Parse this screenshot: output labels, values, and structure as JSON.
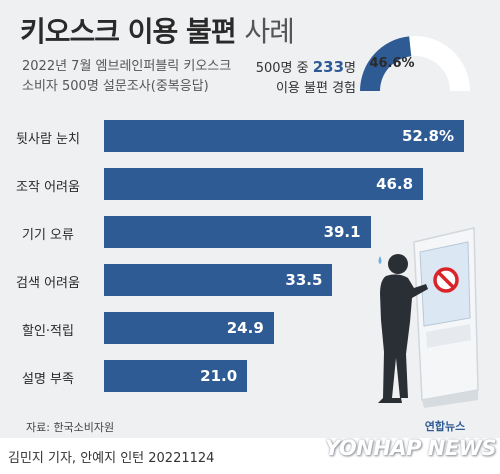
{
  "title": {
    "main": "키오스크 이용 불편",
    "suffix": "사례"
  },
  "subtitle": {
    "line1": "2022년 7월 엠브레인퍼블릭 키오스크",
    "line2": "소비자 500명 설문조사(중복응답)"
  },
  "stat": {
    "prefix": "500명 중",
    "highlight": "233",
    "unit": "명",
    "line2": "이용 불편 경험"
  },
  "donut": {
    "label": "46.6%",
    "value": 46.6,
    "fill_color": "#2f5b95",
    "rest_color": "#ffffff"
  },
  "chart_data": {
    "type": "bar",
    "orientation": "horizontal",
    "categories": [
      "뒷사람 눈치",
      "조작 어려움",
      "기기 오류",
      "검색 어려움",
      "할인·적립",
      "설명 부족"
    ],
    "values": [
      52.8,
      46.8,
      39.1,
      33.5,
      24.9,
      21.0
    ],
    "value_labels": [
      "52.8%",
      "46.8",
      "39.1",
      "33.5",
      "24.9",
      "21.0"
    ],
    "unit": "%",
    "xlim": [
      0,
      52.8
    ],
    "bar_color": "#2f5b95",
    "grid": false,
    "legend": "none"
  },
  "source": "자료: 한국소비자원",
  "logo": "연합뉴스",
  "footer": "김민지 기자, 안예지 인턴  20221124",
  "watermark": "YONHAP NEWS"
}
